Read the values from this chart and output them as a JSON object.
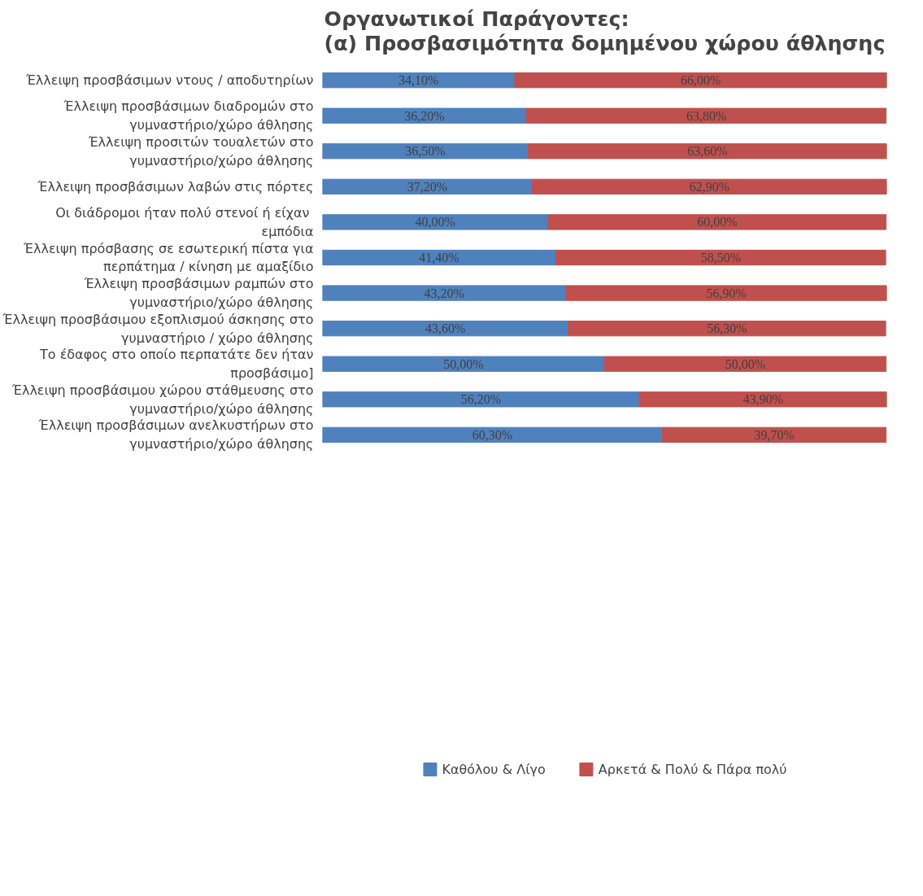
{
  "chart_data": {
    "type": "bar",
    "orientation": "horizontal",
    "stacked": true,
    "title": "Οργανωτικοί Παράγοντες:\n(α) Προσβασιμότητα δομημένου χώρου άθλησης",
    "categories": [
      "Έλλειψη προσβάσιμων ντους / αποδυτηρίων",
      "Έλλειψη προσβάσιμων διαδρομών στο γυμναστήριο/χώρο άθλησης",
      "Έλλειψη προσιτών τουαλετών στο γυμναστήριο/χώρο άθλησης",
      "Έλλειψη προσβάσιμων λαβών στις πόρτες",
      "Οι διάδρομοι ήταν πολύ  στενοί ή είχαν εμπόδια",
      "Έλλειψη πρόσβασης σε εσωτερική πίστα για περπάτημα / κίνηση με αμαξίδιο",
      "Έλλειψη προσβάσιμων ραμπών στο γυμναστήριο/χώρο άθλησης",
      "Έλλειψη προσβάσιμου εξοπλισμού άσκησης στο γυμναστήριο / χώρο άθλησης",
      "Το έδαφος στο οποίο περπατάτε δεν ήταν προσβάσιμο]",
      "Έλλειψη προσβάσιμου χώρου στάθμευσης στο γυμναστήριο/χώρο άθλησης",
      "Έλλειψη προσβάσιμων ανελκυστήρων στο γυμναστήριο/χώρο άθλησης"
    ],
    "series": [
      {
        "name": "Καθόλου & Λίγο",
        "color": "#4f81bd",
        "values": [
          34.1,
          36.2,
          36.5,
          37.2,
          40.0,
          41.4,
          43.2,
          43.6,
          50.0,
          56.2,
          60.3
        ],
        "value_labels": [
          "34,10%",
          "36,20%",
          "36,50%",
          "37,20%",
          "40,00%",
          "41,40%",
          "43,20%",
          "43,60%",
          "50,00%",
          "56,20%",
          "60,30%"
        ]
      },
      {
        "name": "Αρκετά & Πολύ & Πάρα πολύ",
        "color": "#c0504d",
        "values": [
          66.0,
          63.8,
          63.6,
          62.9,
          60.0,
          58.5,
          56.9,
          56.3,
          50.0,
          43.9,
          39.7
        ],
        "value_labels": [
          "66,00%",
          "63,80%",
          "63,60%",
          "62,90%",
          "60,00%",
          "58,50%",
          "56,90%",
          "56,30%",
          "50,00%",
          "43,90%",
          "39,70%"
        ]
      }
    ],
    "tick_labels": "y",
    "legend": "bottom"
  }
}
